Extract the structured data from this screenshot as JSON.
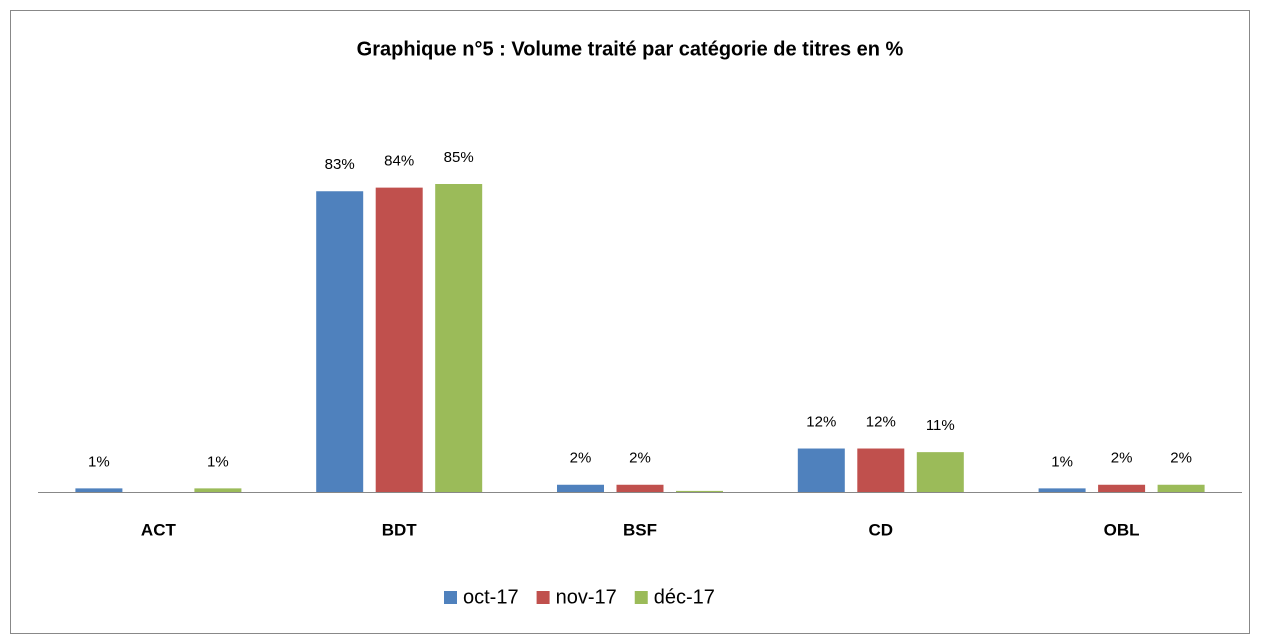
{
  "chart_data": {
    "type": "bar",
    "title": "Graphique n°5 : Volume traité par catégorie de titres en %",
    "categories": [
      "ACT",
      "BDT",
      "BSF",
      "CD",
      "OBL"
    ],
    "series": [
      {
        "name": "oct-17",
        "color": "#4f81bd",
        "values": [
          1,
          83,
          2,
          12,
          1
        ],
        "value_labels": [
          "1%",
          "83%",
          "2%",
          "12%",
          "1%"
        ]
      },
      {
        "name": "nov-17",
        "color": "#c0504d",
        "values": [
          0,
          84,
          2,
          12,
          2
        ],
        "value_labels": [
          null,
          "84%",
          "2%",
          "12%",
          "2%"
        ]
      },
      {
        "name": "déc-17",
        "color": "#9bbb59",
        "values": [
          1,
          85,
          0.3,
          11,
          2
        ],
        "value_labels": [
          "1%",
          "85%",
          null,
          "11%",
          "2%"
        ]
      }
    ],
    "legend": "bottom"
  }
}
